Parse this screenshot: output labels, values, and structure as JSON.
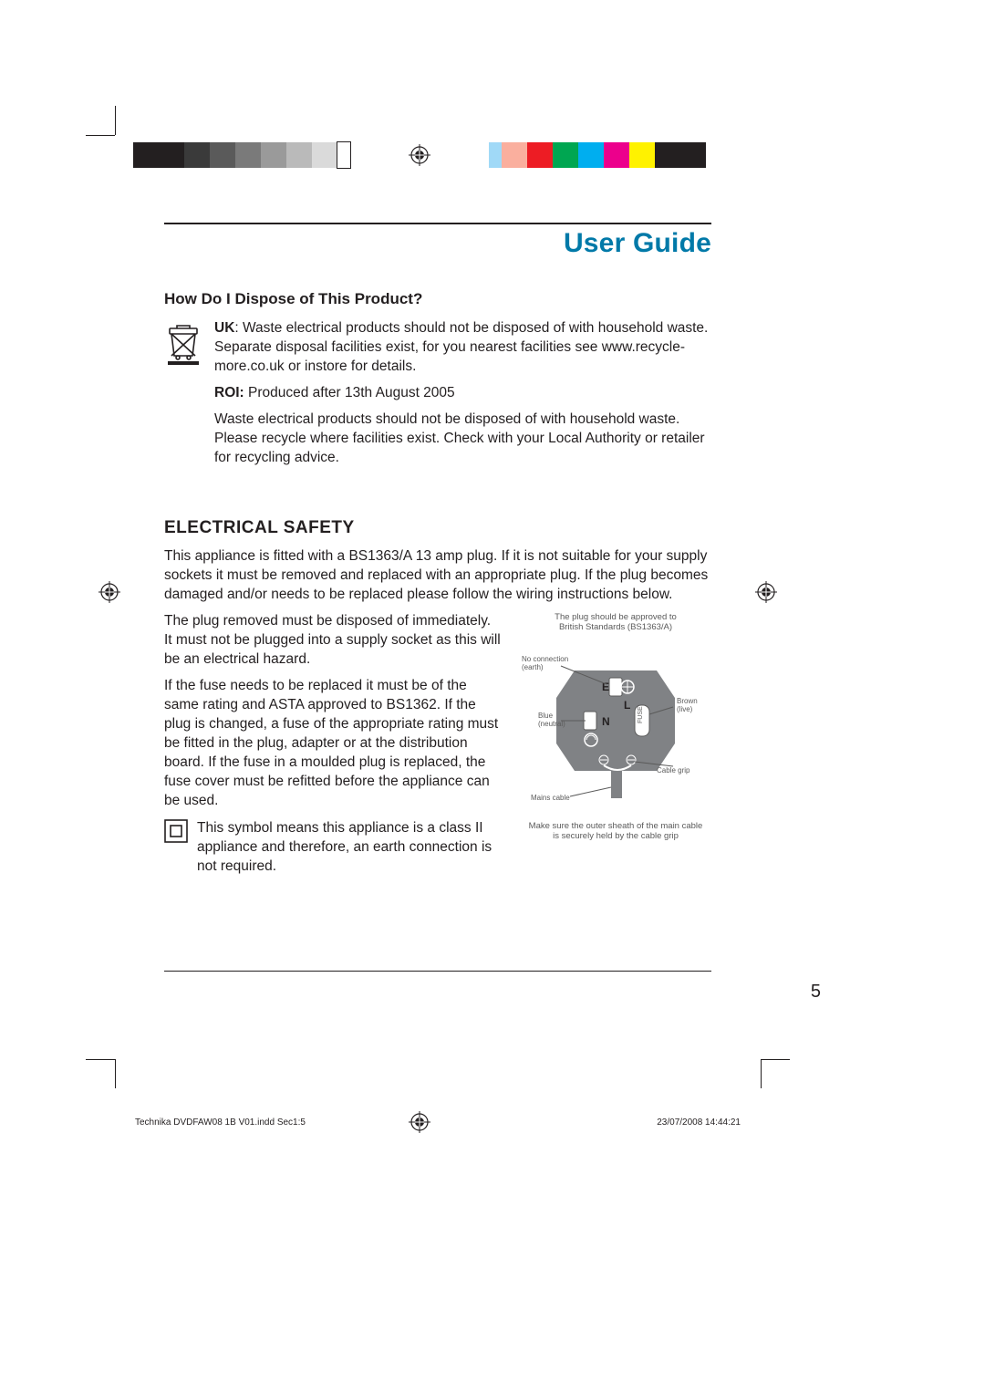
{
  "colorbar_left": [
    "#231f20",
    "#231f20",
    "#3a3a3a",
    "#5a5a5a",
    "#7a7a7a",
    "#9a9a9a",
    "#bababa",
    "#dadada",
    "#ffffff"
  ],
  "colorbar_right": [
    "#231f20",
    "#231f20",
    "#fff200",
    "#ec008c",
    "#00aeef",
    "#00a651",
    "#ed1c24",
    "#faaf9e",
    "#a0d9f7"
  ],
  "swatch_border": "#231f20",
  "title": "User Guide",
  "title_color": "#0079a8",
  "sec1": {
    "heading": "How Do I Dispose of This Product?",
    "uk_label": "UK",
    "uk_text": ": Waste electrical products should not be disposed of with household waste. Separate disposal facilities exist, for you nearest facilities see www.recycle-more.co.uk or instore for details.",
    "roi_label": "ROI:",
    "roi_text": " Produced after 13th August 2005",
    "roi_para": "Waste electrical products should not be disposed of with household waste. Please recycle where facilities exist. Check with your Local Authority or retailer for recycling advice."
  },
  "sec2": {
    "heading": "ELECTRICAL SAFETY",
    "p1": "This appliance is fitted with a BS1363/A 13 amp plug. If it is not suitable for your supply sockets it must be removed and replaced with an appropriate plug. If the plug becomes damaged and/or needs to be replaced please follow the wiring instructions below.",
    "p2": "The plug removed must be disposed of immediately.\nIt must not be plugged into a supply socket as this will be an electrical hazard.",
    "p3": "If the fuse needs to be replaced it must be of the same rating and ASTA approved to BS1362. If the plug is changed, a fuse of the appropriate rating must be fitted in the plug, adapter or at the distribution board. If the fuse in a moulded plug is replaced, the fuse cover must be refitted before the appliance can be used.",
    "class2": "This symbol means this appliance is a class II appliance and therefore, an earth connection is not required."
  },
  "plug": {
    "caption_top": "The plug should be approved to\nBritish Standards (BS1363/A)",
    "caption_bottom": "Make sure the outer sheath of the main cable\nis securely held by the cable grip",
    "labels": {
      "earth": "No connection\n(earth)",
      "neutral": "Blue\n(neutral)",
      "live": "Brown\n(live)",
      "cablegrip": "Cable grip",
      "mains": "Mains cable",
      "E": "E",
      "N": "N",
      "L": "L",
      "fuse": "FUSE"
    },
    "colors": {
      "body": "#808285",
      "text": "#5a5a5a",
      "line": "#5a5a5a",
      "white": "#ffffff"
    }
  },
  "page_number": "5",
  "footer_left": "Technika DVDFAW08 1B V01.indd   Sec1:5",
  "footer_right": "23/07/2008   14:44:21"
}
